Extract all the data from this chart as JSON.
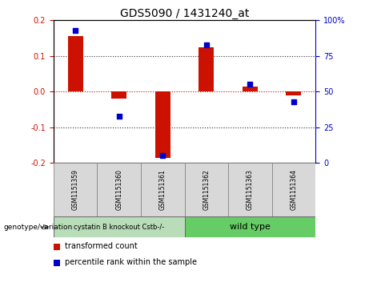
{
  "title": "GDS5090 / 1431240_at",
  "samples": [
    "GSM1151359",
    "GSM1151360",
    "GSM1151361",
    "GSM1151362",
    "GSM1151363",
    "GSM1151364"
  ],
  "red_values": [
    0.155,
    -0.02,
    -0.185,
    0.125,
    0.015,
    -0.01
  ],
  "blue_values_pct": [
    93,
    33,
    5,
    83,
    55,
    43
  ],
  "ylim_left": [
    -0.2,
    0.2
  ],
  "ylim_right": [
    0,
    100
  ],
  "yticks_left": [
    -0.2,
    -0.1,
    0.0,
    0.1,
    0.2
  ],
  "yticks_right": [
    0,
    25,
    50,
    75,
    100
  ],
  "ytick_labels_right": [
    "0",
    "25",
    "50",
    "75",
    "100%"
  ],
  "hline_zero_color": "#cc0000",
  "hline_dotted_color": "#333333",
  "bar_color": "#cc1100",
  "dot_color": "#0000cc",
  "group1_label": "cystatin B knockout Cstb-/-",
  "group2_label": "wild type",
  "group1_indices": [
    0,
    1,
    2
  ],
  "group2_indices": [
    3,
    4,
    5
  ],
  "group1_color": "#b8ddb8",
  "group2_color": "#66cc66",
  "bottom_label": "genotype/variation",
  "legend1_label": "transformed count",
  "legend2_label": "percentile rank within the sample",
  "bg_color": "#ffffff",
  "bar_width": 0.35,
  "dot_size": 25,
  "tick_label_color_left": "#cc1100",
  "tick_label_color_right": "#0000cc"
}
